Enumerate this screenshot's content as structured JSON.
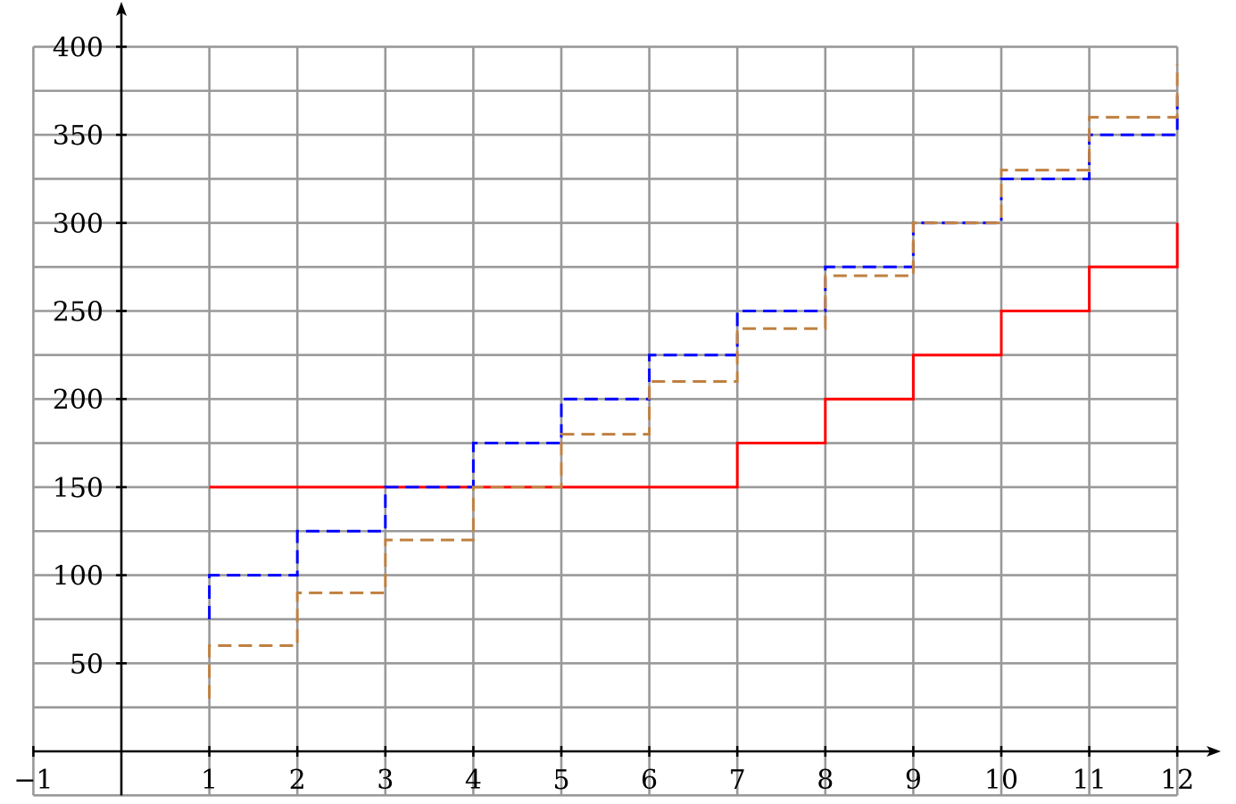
{
  "chart_data": {
    "type": "line",
    "step": true,
    "xlim": [
      -1,
      12
    ],
    "ylim": [
      -25,
      400
    ],
    "grid": true,
    "x_ticks": [
      -1,
      1,
      2,
      3,
      4,
      5,
      6,
      7,
      8,
      9,
      10,
      11,
      12
    ],
    "x_tick_labels": [
      "−1",
      "1",
      "2",
      "3",
      "4",
      "5",
      "6",
      "7",
      "8",
      "9",
      "10",
      "11",
      "12"
    ],
    "y_ticks": [
      50,
      100,
      150,
      200,
      250,
      300,
      350,
      400
    ],
    "y_tick_labels": [
      "50",
      "100",
      "150",
      "200",
      "250",
      "300",
      "350",
      "400"
    ],
    "series": [
      {
        "color": "#ff0000",
        "style": "solid",
        "start": [
          1,
          150
        ],
        "x": [
          1,
          2,
          3,
          4,
          5,
          6,
          7,
          8,
          9,
          10,
          11,
          12
        ],
        "values": [
          150,
          150,
          150,
          150,
          150,
          150,
          175,
          200,
          225,
          250,
          275,
          300
        ]
      },
      {
        "color": "#0000ff",
        "style": "dashed",
        "start": [
          1,
          75
        ],
        "x": [
          1,
          2,
          3,
          4,
          5,
          6,
          7,
          8,
          9,
          10,
          11,
          12
        ],
        "values": [
          100,
          125,
          150,
          175,
          200,
          225,
          250,
          275,
          300,
          325,
          350,
          375
        ]
      },
      {
        "color": "#c08040",
        "style": "dashed",
        "start": [
          1,
          30
        ],
        "x": [
          1,
          2,
          3,
          4,
          5,
          6,
          7,
          8,
          9,
          10,
          11,
          12
        ],
        "values": [
          60,
          90,
          120,
          150,
          180,
          210,
          240,
          270,
          300,
          330,
          360,
          390
        ]
      }
    ]
  }
}
